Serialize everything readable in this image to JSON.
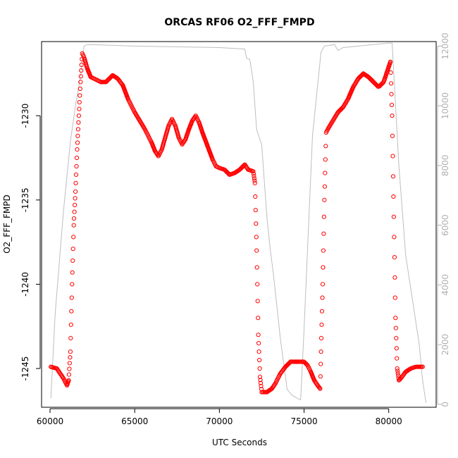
{
  "chart_data": {
    "type": "scatter",
    "title": "ORCAS RF06 O2_FFF_FMPD",
    "xlabel": "UTC Seconds",
    "ylabel": "O2_FFF_FMPD",
    "xlim": [
      59500,
      82800
    ],
    "ylim": [
      -1247.3,
      -1225.6
    ],
    "y2lim": [
      -100,
      12150
    ],
    "x_ticks": [
      60000,
      65000,
      70000,
      75000,
      80000
    ],
    "y_ticks": [
      -1245,
      -1240,
      -1235,
      -1230
    ],
    "y2_ticks": [
      0,
      2000,
      4000,
      6000,
      8000,
      10000,
      12000
    ],
    "grid": false,
    "legend": "none",
    "colors": {
      "points": "#ff0000",
      "secondary_line": "#bebebe",
      "axes": "#000000",
      "right_axis": "#b0b0b0"
    },
    "series": [
      {
        "kind": "points",
        "points": [
          [
            60050,
            -1244.9
          ],
          [
            60400,
            -1245.0
          ],
          [
            60800,
            -1245.6
          ],
          [
            61000,
            -1246.0
          ],
          [
            61100,
            -1245.7
          ],
          [
            61200,
            -1244.0
          ],
          [
            61300,
            -1240.0
          ],
          [
            61400,
            -1236.5
          ],
          [
            61500,
            -1234.5
          ],
          [
            61600,
            -1232.0
          ],
          [
            61700,
            -1230.0
          ],
          [
            61800,
            -1228.0
          ],
          [
            61900,
            -1226.3
          ],
          [
            62000,
            -1226.5
          ],
          [
            62200,
            -1227.2
          ],
          [
            62400,
            -1227.7
          ],
          [
            62800,
            -1227.9
          ],
          [
            63000,
            -1228.0
          ],
          [
            63300,
            -1228.0
          ],
          [
            63700,
            -1227.6
          ],
          [
            64000,
            -1227.8
          ],
          [
            64300,
            -1228.2
          ],
          [
            64600,
            -1229.0
          ],
          [
            65000,
            -1229.8
          ],
          [
            65300,
            -1230.3
          ],
          [
            65600,
            -1230.8
          ],
          [
            66000,
            -1231.6
          ],
          [
            66200,
            -1232.1
          ],
          [
            66400,
            -1232.4
          ],
          [
            66600,
            -1232.0
          ],
          [
            66800,
            -1231.3
          ],
          [
            67000,
            -1230.6
          ],
          [
            67200,
            -1230.2
          ],
          [
            67400,
            -1230.6
          ],
          [
            67600,
            -1231.3
          ],
          [
            67800,
            -1231.7
          ],
          [
            68000,
            -1231.4
          ],
          [
            68200,
            -1230.8
          ],
          [
            68400,
            -1230.3
          ],
          [
            68600,
            -1230.0
          ],
          [
            68800,
            -1230.4
          ],
          [
            69000,
            -1231.0
          ],
          [
            69300,
            -1231.8
          ],
          [
            69600,
            -1232.6
          ],
          [
            69800,
            -1233.0
          ],
          [
            70000,
            -1233.1
          ],
          [
            70300,
            -1233.2
          ],
          [
            70600,
            -1233.5
          ],
          [
            70900,
            -1233.4
          ],
          [
            71200,
            -1233.2
          ],
          [
            71500,
            -1232.9
          ],
          [
            71700,
            -1233.2
          ],
          [
            72000,
            -1233.3
          ],
          [
            72100,
            -1234.0
          ],
          [
            72200,
            -1238.0
          ],
          [
            72300,
            -1243.0
          ],
          [
            72400,
            -1245.5
          ],
          [
            72500,
            -1246.4
          ],
          [
            72800,
            -1246.4
          ],
          [
            73100,
            -1246.2
          ],
          [
            73300,
            -1245.9
          ],
          [
            73600,
            -1245.3
          ],
          [
            73900,
            -1244.9
          ],
          [
            74200,
            -1244.6
          ],
          [
            74600,
            -1244.6
          ],
          [
            75000,
            -1244.6
          ],
          [
            75200,
            -1244.8
          ],
          [
            75400,
            -1245.2
          ],
          [
            75600,
            -1245.7
          ],
          [
            75800,
            -1246.0
          ],
          [
            75950,
            -1246.2
          ],
          [
            76000,
            -1244.0
          ],
          [
            76100,
            -1240.0
          ],
          [
            76200,
            -1235.0
          ],
          [
            76300,
            -1231.0
          ],
          [
            76400,
            -1230.8
          ],
          [
            76700,
            -1230.3
          ],
          [
            77000,
            -1229.8
          ],
          [
            77300,
            -1229.5
          ],
          [
            77600,
            -1229.0
          ],
          [
            77900,
            -1228.3
          ],
          [
            78200,
            -1227.8
          ],
          [
            78500,
            -1227.5
          ],
          [
            78800,
            -1227.7
          ],
          [
            79100,
            -1228.0
          ],
          [
            79400,
            -1228.3
          ],
          [
            79700,
            -1228.0
          ],
          [
            80000,
            -1227.1
          ],
          [
            80100,
            -1226.8
          ],
          [
            80200,
            -1230.0
          ],
          [
            80300,
            -1236.0
          ],
          [
            80400,
            -1242.0
          ],
          [
            80500,
            -1245.0
          ],
          [
            80600,
            -1245.7
          ],
          [
            80700,
            -1245.6
          ],
          [
            81000,
            -1245.2
          ],
          [
            81300,
            -1245.0
          ],
          [
            81600,
            -1244.9
          ],
          [
            82000,
            -1244.9
          ]
        ]
      },
      {
        "kind": "line",
        "axis": "right",
        "points": [
          [
            60050,
            200
          ],
          [
            60300,
            3000
          ],
          [
            60800,
            6500
          ],
          [
            61200,
            8800
          ],
          [
            61500,
            10000
          ],
          [
            61800,
            11000
          ],
          [
            62000,
            12000
          ],
          [
            62200,
            12050
          ],
          [
            65000,
            12000
          ],
          [
            70000,
            11950
          ],
          [
            71500,
            11900
          ],
          [
            71600,
            11600
          ],
          [
            71800,
            11550
          ],
          [
            72000,
            10800
          ],
          [
            72200,
            9200
          ],
          [
            72500,
            8700
          ],
          [
            72800,
            6300
          ],
          [
            73000,
            5200
          ],
          [
            73200,
            4300
          ],
          [
            73600,
            2200
          ],
          [
            74000,
            500
          ],
          [
            74300,
            300
          ],
          [
            74600,
            200
          ],
          [
            74800,
            150
          ],
          [
            75000,
            2500
          ],
          [
            75500,
            9000
          ],
          [
            76000,
            11800
          ],
          [
            76200,
            12000
          ],
          [
            76800,
            12050
          ],
          [
            77000,
            11850
          ],
          [
            77300,
            11950
          ],
          [
            80000,
            12100
          ],
          [
            80200,
            12100
          ],
          [
            80600,
            8000
          ],
          [
            81000,
            5000
          ],
          [
            81400,
            3500
          ],
          [
            81800,
            2000
          ],
          [
            82000,
            800
          ],
          [
            82200,
            50
          ]
        ]
      }
    ]
  }
}
